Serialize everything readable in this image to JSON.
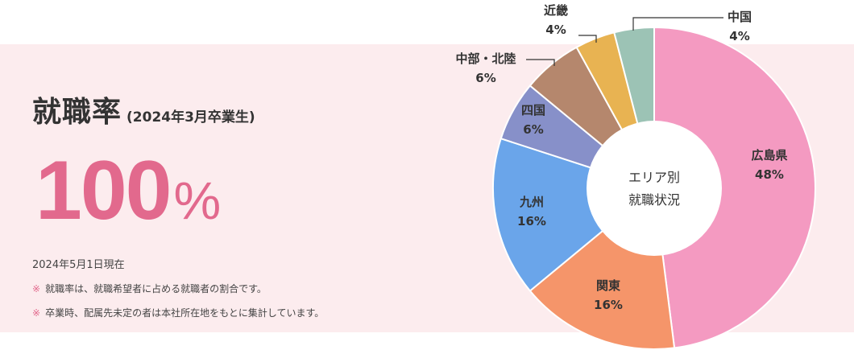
{
  "headline": {
    "title": "就職率",
    "subtitle": "(2024年3月卒業生)"
  },
  "rate": {
    "value": "100",
    "unit": "%"
  },
  "date_note": "2024年5月1日現在",
  "notes": [
    {
      "mark": "※",
      "text": "就職率は、就職希望者に占める就職者の割合です。"
    },
    {
      "mark": "※",
      "text": "卒業時、配属先未定の者は本社所在地をもとに集計しています。"
    }
  ],
  "chart_data": {
    "type": "pie",
    "center_label": [
      "エリア別",
      "就職状況"
    ],
    "slices": [
      {
        "label": "広島県",
        "value": 48,
        "display": "48%",
        "color": "#f49ac1"
      },
      {
        "label": "関東",
        "value": 16,
        "display": "16%",
        "color": "#f5956a"
      },
      {
        "label": "九州",
        "value": 16,
        "display": "16%",
        "color": "#6aa5ea"
      },
      {
        "label": "四国",
        "value": 6,
        "display": "6%",
        "color": "#8790c9"
      },
      {
        "label": "中部・北陸",
        "value": 6,
        "display": "6%",
        "color": "#b5876d"
      },
      {
        "label": "近畿",
        "value": 4,
        "display": "4%",
        "color": "#e8b352"
      },
      {
        "label": "中国",
        "value": 4,
        "display": "4%",
        "color": "#9cc3b5"
      }
    ]
  }
}
